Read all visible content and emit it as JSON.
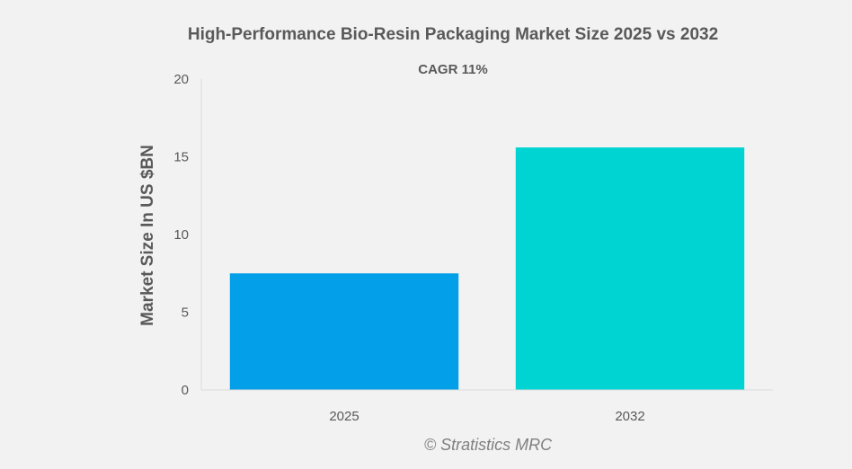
{
  "chart_data": {
    "type": "bar",
    "title": "High-Performance Bio-Resin Packaging Market Size 2025 vs 2032",
    "subtitle": "CAGR 11%",
    "xlabel": "",
    "ylabel": "Market Size In US $BN",
    "categories": [
      "2025",
      "2032"
    ],
    "values": [
      7.5,
      15.6
    ],
    "colors": [
      "#039fe8",
      "#00d4d2"
    ],
    "ylim": [
      0,
      20
    ],
    "yticks": [
      0,
      5,
      10,
      15,
      20
    ],
    "ytick_labels": [
      "0",
      "5",
      "10",
      "15",
      "20"
    ],
    "grid": false,
    "legend": "none"
  },
  "footer": {
    "credit": "© Stratistics MRC"
  },
  "colors": {
    "background": "#f2f2f2",
    "text": "#595959",
    "axis": "#d9d9d9"
  }
}
